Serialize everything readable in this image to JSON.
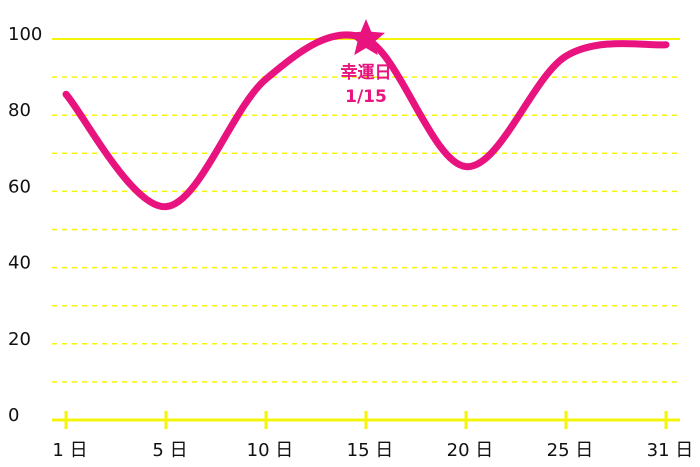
{
  "chart_data": {
    "type": "line",
    "categories": [
      "1 日",
      "5 日",
      "10 日",
      "15 日",
      "20 日",
      "25 日",
      "31 日"
    ],
    "series": [
      {
        "color": "#e8137f",
        "values": [
          85.5,
          56,
          89.5,
          100,
          66.5,
          95.5,
          98.5
        ]
      }
    ],
    "ylim": [
      0,
      100
    ],
    "yticks": [
      0,
      20,
      40,
      60,
      80,
      100
    ],
    "minor_yticks": [
      10,
      30,
      50,
      70,
      90
    ],
    "grid": true,
    "grid_color": "#f5f50a",
    "annotation": {
      "label": "幸運日",
      "date": "1/15",
      "at": 3
    }
  }
}
